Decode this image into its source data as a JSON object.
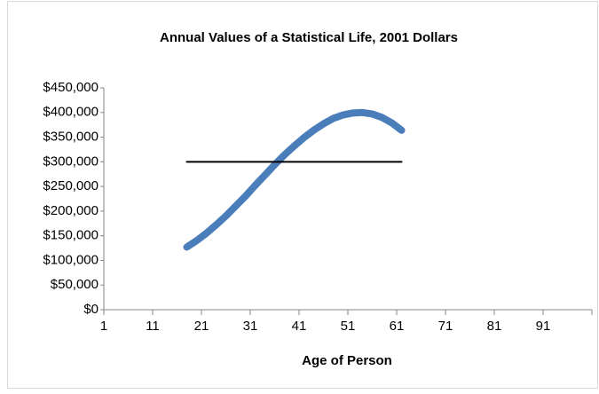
{
  "chart_data": {
    "type": "line",
    "title": "Annual Values of a Statistical Life, 2001 Dollars",
    "xlabel": "Age of Person",
    "xlim": [
      1,
      101
    ],
    "xticks": [
      1,
      11,
      21,
      31,
      41,
      51,
      61,
      71,
      81,
      91
    ],
    "ylim": [
      0,
      450000
    ],
    "yticks": [
      {
        "value": 0,
        "label": "$0"
      },
      {
        "value": 50000,
        "label": "$50,000"
      },
      {
        "value": 100000,
        "label": "$100,000"
      },
      {
        "value": 150000,
        "label": "$150,000"
      },
      {
        "value": 200000,
        "label": "$200,000"
      },
      {
        "value": 250000,
        "label": "$250,000"
      },
      {
        "value": 300000,
        "label": "$300,000"
      },
      {
        "value": 350000,
        "label": "$350,000"
      },
      {
        "value": 400000,
        "label": "$400,000"
      },
      {
        "value": 450000,
        "label": "$450,000"
      }
    ],
    "grid": false,
    "series": [
      {
        "color": "#4a7ebb",
        "width": 8,
        "x": [
          18,
          20,
          22,
          24,
          26,
          28,
          30,
          32,
          34,
          36,
          38,
          40,
          42,
          44,
          46,
          48,
          50,
          52,
          54,
          56,
          58,
          60,
          62
        ],
        "values": [
          127000,
          140000,
          155000,
          172000,
          190000,
          210000,
          230000,
          252000,
          273000,
          294000,
          314000,
          332000,
          349000,
          364000,
          377000,
          388000,
          395000,
          399000,
          400000,
          397000,
          390000,
          379000,
          364000
        ]
      },
      {
        "color": "#000000",
        "width": 2,
        "x": [
          18,
          62
        ],
        "values": [
          300000,
          300000
        ]
      }
    ]
  }
}
